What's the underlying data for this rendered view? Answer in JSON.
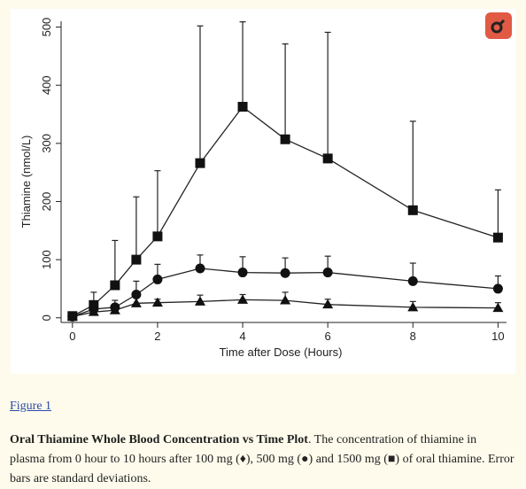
{
  "figure_link": "Figure 1",
  "caption": {
    "title": "Oral Thiamine Whole Blood Concentration vs Time Plot",
    "text": ". The concentration of thiamine in plasma from 0 hour to 10 hours after 100 mg (♦), 500 mg (●) and 1500 mg (■) of oral thiamine. Error bars are standard deviations."
  },
  "logo_icon": "logo-icon",
  "chart_data": {
    "type": "line",
    "xlabel": "Time after Dose (Hours)",
    "ylabel": "Thiamine (nmol/L)",
    "xlim": [
      -0.1,
      10.2
    ],
    "ylim": [
      -8,
      510
    ],
    "xticks": [
      0,
      2,
      4,
      6,
      8,
      10
    ],
    "yticks": [
      0,
      100,
      200,
      300,
      400,
      500
    ],
    "grid": false,
    "series": [
      {
        "marker": "triangle",
        "x": [
          0,
          0.5,
          1,
          1.5,
          2,
          3,
          4,
          5,
          6,
          8,
          10
        ],
        "y": [
          2,
          10,
          13,
          25,
          26,
          28,
          31,
          30,
          23,
          18,
          17
        ],
        "err": [
          2,
          7,
          8,
          10,
          6,
          11,
          9,
          14,
          9,
          10,
          9
        ]
      },
      {
        "marker": "circle",
        "x": [
          0,
          0.5,
          1,
          1.5,
          2,
          3,
          4,
          5,
          6,
          8,
          10
        ],
        "y": [
          2,
          15,
          18,
          40,
          66,
          85,
          78,
          77,
          78,
          63,
          50
        ],
        "err": [
          3,
          12,
          12,
          23,
          26,
          23,
          27,
          26,
          28,
          31,
          22
        ]
      },
      {
        "marker": "square",
        "x": [
          0,
          0.5,
          1,
          1.5,
          2,
          3,
          4,
          5,
          6,
          8,
          10
        ],
        "y": [
          3,
          22,
          56,
          100,
          140,
          266,
          363,
          307,
          274,
          185,
          138
        ],
        "err": [
          3,
          22,
          77,
          108,
          113,
          236,
          146,
          164,
          217,
          153,
          82
        ]
      }
    ]
  }
}
